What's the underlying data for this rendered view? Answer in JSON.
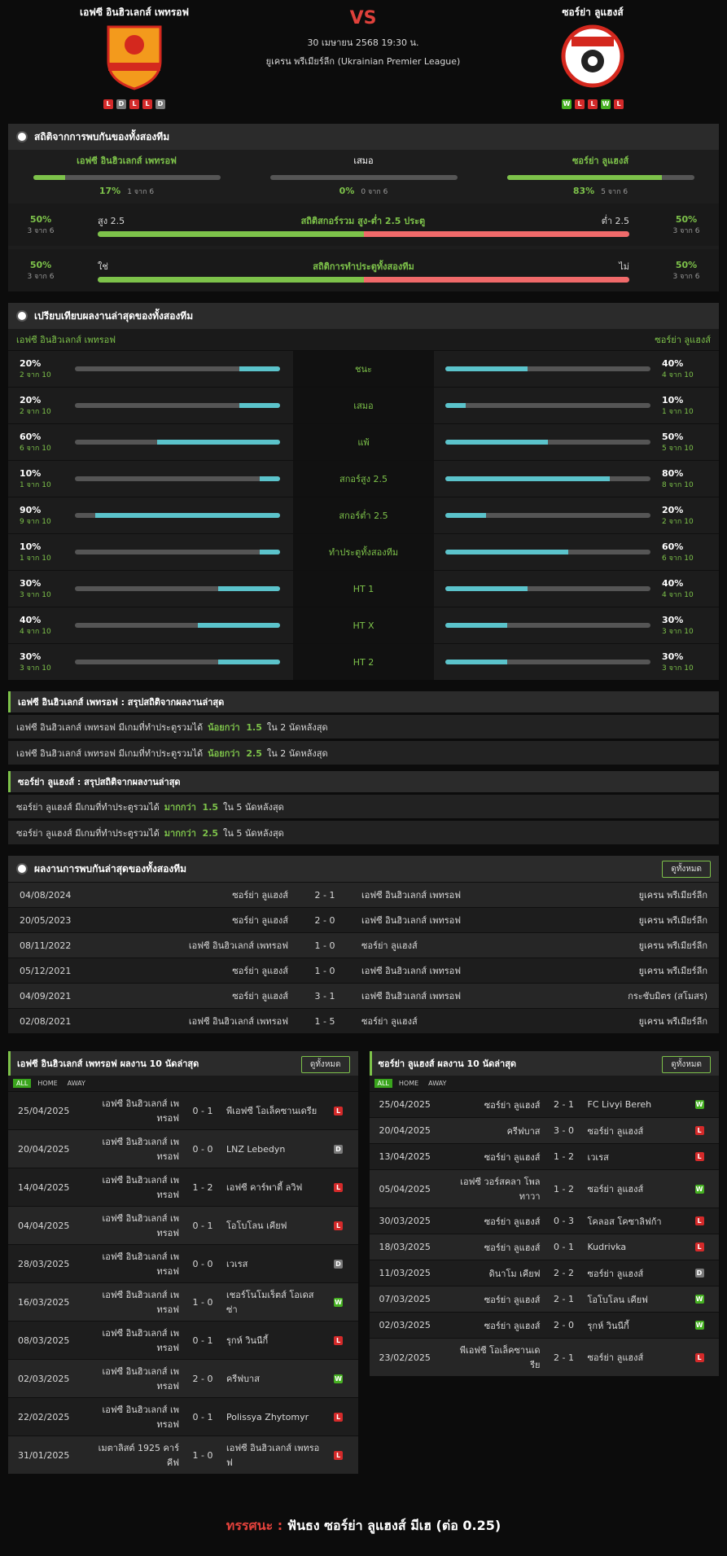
{
  "header": {
    "home_team": "เอฟซี อินฮิวเลกส์ เพทรอฟ",
    "away_team": "ซอร์ย่า ลูแฮงส์",
    "vs": "VS",
    "datetime": "30 เมษายน 2568 19:30 น.",
    "league": "ยูเครน พรีเมียร์ลีก (Ukrainian Premier League)",
    "home_form": [
      "L",
      "D",
      "L",
      "L",
      "D"
    ],
    "away_form": [
      "W",
      "L",
      "L",
      "W",
      "L"
    ]
  },
  "h2h_stats": {
    "title": "สถิติจากการพบกันของทั้งสองทีม",
    "columns": [
      {
        "label": "เอฟซี อินฮิวเลกส์ เพทรอฟ",
        "pct": {
          "value": 17,
          "label": "17%"
        },
        "count": "1 จาก 6"
      },
      {
        "label": "เสมอ",
        "pct": {
          "value": 0,
          "label": "0%"
        },
        "count": "0 จาก 6"
      },
      {
        "label": "ซอร์ย่า ลูแฮงส์",
        "pct": {
          "value": 83,
          "label": "83%"
        },
        "count": "5 จาก 6"
      }
    ],
    "rows": [
      {
        "left_pct": {
          "value": 50,
          "label": "50%"
        },
        "left_count": "3 จาก 6",
        "left_label": "สูง 2.5",
        "title": "สถิติสกอร์รวม สูง-ต่ำ 2.5 ประตู",
        "right_label": "ต่ำ 2.5",
        "right_pct": {
          "value": 50,
          "label": "50%"
        },
        "right_count": "3 จาก 6"
      },
      {
        "left_pct": {
          "value": 50,
          "label": "50%"
        },
        "left_count": "3 จาก 6",
        "left_label": "ใช่",
        "title": "สถิติการทำประตูทั้งสองทีม",
        "right_label": "ไม่",
        "right_pct": {
          "value": 50,
          "label": "50%"
        },
        "right_count": "3 จาก 6"
      }
    ]
  },
  "form_compare": {
    "title": "เปรียบเทียบผลงานล่าสุดของทั้งสองทีม",
    "home_team": "เอฟซี อินฮิวเลกส์ เพทรอฟ",
    "away_team": "ซอร์ย่า ลูแฮงส์",
    "rows": [
      {
        "label": "ชนะ",
        "home_pct": {
          "value": 20,
          "label": "20%"
        },
        "home_count": "2 จาก 10",
        "away_pct": {
          "value": 40,
          "label": "40%"
        },
        "away_count": "4 จาก 10"
      },
      {
        "label": "เสมอ",
        "home_pct": {
          "value": 20,
          "label": "20%"
        },
        "home_count": "2 จาก 10",
        "away_pct": {
          "value": 10,
          "label": "10%"
        },
        "away_count": "1 จาก 10"
      },
      {
        "label": "แพ้",
        "home_pct": {
          "value": 60,
          "label": "60%"
        },
        "home_count": "6 จาก 10",
        "away_pct": {
          "value": 50,
          "label": "50%"
        },
        "away_count": "5 จาก 10"
      },
      {
        "label": "สกอร์สูง 2.5",
        "home_pct": {
          "value": 10,
          "label": "10%"
        },
        "home_count": "1 จาก 10",
        "away_pct": {
          "value": 80,
          "label": "80%"
        },
        "away_count": "8 จาก 10"
      },
      {
        "label": "สกอร์ต่ำ 2.5",
        "home_pct": {
          "value": 90,
          "label": "90%"
        },
        "home_count": "9 จาก 10",
        "away_pct": {
          "value": 20,
          "label": "20%"
        },
        "away_count": "2 จาก 10"
      },
      {
        "label": "ทำประตูทั้งสองทีม",
        "home_pct": {
          "value": 10,
          "label": "10%"
        },
        "home_count": "1 จาก 10",
        "away_pct": {
          "value": 60,
          "label": "60%"
        },
        "away_count": "6 จาก 10"
      },
      {
        "label": "HT 1",
        "home_pct": {
          "value": 30,
          "label": "30%"
        },
        "home_count": "3 จาก 10",
        "away_pct": {
          "value": 40,
          "label": "40%"
        },
        "away_count": "4 จาก 10"
      },
      {
        "label": "HT X",
        "home_pct": {
          "value": 40,
          "label": "40%"
        },
        "home_count": "4 จาก 10",
        "away_pct": {
          "value": 30,
          "label": "30%"
        },
        "away_count": "3 จาก 10"
      },
      {
        "label": "HT 2",
        "home_pct": {
          "value": 30,
          "label": "30%"
        },
        "home_count": "3 จาก 10",
        "away_pct": {
          "value": 30,
          "label": "30%"
        },
        "away_count": "3 จาก 10"
      }
    ]
  },
  "summaries": [
    {
      "title": "เอฟซี อินฮิวเลกส์ เพทรอฟ : สรุปสถิติจากผลงานล่าสุด",
      "lines": [
        {
          "text": "เอฟซี อินฮิวเลกส์ เพทรอฟ มีเกมที่ทำประตูรวมได้",
          "highlight": "น้อยกว่า  1.5",
          "suffix": "ใน 2 นัดหลังสุด"
        },
        {
          "text": "เอฟซี อินฮิวเลกส์ เพทรอฟ มีเกมที่ทำประตูรวมได้",
          "highlight": "น้อยกว่า  2.5",
          "suffix": "ใน 2 นัดหลังสุด"
        }
      ]
    },
    {
      "title": "ซอร์ย่า ลูแฮงส์ : สรุปสถิติจากผลงานล่าสุด",
      "lines": [
        {
          "text": "ซอร์ย่า ลูแฮงส์ มีเกมที่ทำประตูรวมได้",
          "highlight": "มากกว่า  1.5",
          "suffix": "ใน 5 นัดหลังสุด"
        },
        {
          "text": "ซอร์ย่า ลูแฮงส์ มีเกมที่ทำประตูรวมได้",
          "highlight": "มากกว่า  2.5",
          "suffix": "ใน 5 นัดหลังสุด"
        }
      ]
    }
  ],
  "h2h_results": {
    "title": "ผลงานการพบกันล่าสุดของทั้งสองทีม",
    "button": "ดูทั้งหมด",
    "rows": [
      {
        "date": "04/08/2024",
        "home": "ซอร์ย่า ลูแฮงส์",
        "score": "2 - 1",
        "away": "เอฟซี อินฮิวเลกส์ เพทรอฟ",
        "league": "ยูเครน พรีเมียร์ลีก"
      },
      {
        "date": "20/05/2023",
        "home": "ซอร์ย่า ลูแฮงส์",
        "score": "2 - 0",
        "away": "เอฟซี อินฮิวเลกส์ เพทรอฟ",
        "league": "ยูเครน พรีเมียร์ลีก"
      },
      {
        "date": "08/11/2022",
        "home": "เอฟซี อินฮิวเลกส์ เพทรอฟ",
        "score": "1 - 0",
        "away": "ซอร์ย่า ลูแฮงส์",
        "league": "ยูเครน พรีเมียร์ลีก"
      },
      {
        "date": "05/12/2021",
        "home": "ซอร์ย่า ลูแฮงส์",
        "score": "1 - 0",
        "away": "เอฟซี อินฮิวเลกส์ เพทรอฟ",
        "league": "ยูเครน พรีเมียร์ลีก"
      },
      {
        "date": "04/09/2021",
        "home": "ซอร์ย่า ลูแฮงส์",
        "score": "3 - 1",
        "away": "เอฟซี อินฮิวเลกส์ เพทรอฟ",
        "league": "กระชับมิตร (สโมสร)"
      },
      {
        "date": "02/08/2021",
        "home": "เอฟซี อินฮิวเลกส์ เพทรอฟ",
        "score": "1 - 5",
        "away": "ซอร์ย่า ลูแฮงส์",
        "league": "ยูเครน พรีเมียร์ลีก"
      }
    ]
  },
  "last10": [
    {
      "title": "เอฟซี อินฮิวเลกส์ เพทรอฟ ผลงาน 10 นัดล่าสุด",
      "button": "ดูทั้งหมด",
      "tabs": [
        "ALL",
        "HOME",
        "AWAY"
      ],
      "rows": [
        {
          "date": "25/04/2025",
          "home": "เอฟซี อินฮิวเลกส์ เพทรอฟ",
          "score": "0 - 1",
          "away": "พีเอฟซี โอเล็คซานเดรีย",
          "result": "L"
        },
        {
          "date": "20/04/2025",
          "home": "เอฟซี อินฮิวเลกส์ เพทรอฟ",
          "score": "0 - 0",
          "away": "LNZ Lebedyn",
          "result": "D"
        },
        {
          "date": "14/04/2025",
          "home": "เอฟซี อินฮิวเลกส์ เพทรอฟ",
          "score": "1 - 2",
          "away": "เอฟซี คาร์พาตี้ ลวิฟ",
          "result": "L"
        },
        {
          "date": "04/04/2025",
          "home": "เอฟซี อินฮิวเลกส์ เพทรอฟ",
          "score": "0 - 1",
          "away": "โอโบโลน เคียฟ",
          "result": "L"
        },
        {
          "date": "28/03/2025",
          "home": "เอฟซี อินฮิวเลกส์ เพทรอฟ",
          "score": "0 - 0",
          "away": "เวเรส",
          "result": "D"
        },
        {
          "date": "16/03/2025",
          "home": "เอฟซี อินฮิวเลกส์ เพทรอฟ",
          "score": "1 - 0",
          "away": "เชอร์โนโมเร็ตส์ โอเดสซ่า",
          "result": "W"
        },
        {
          "date": "08/03/2025",
          "home": "เอฟซี อินฮิวเลกส์ เพทรอฟ",
          "score": "0 - 1",
          "away": "รุกห์ วินนีกี้",
          "result": "L"
        },
        {
          "date": "02/03/2025",
          "home": "เอฟซี อินฮิวเลกส์ เพทรอฟ",
          "score": "2 - 0",
          "away": "ครีฟบาส",
          "result": "W"
        },
        {
          "date": "22/02/2025",
          "home": "เอฟซี อินฮิวเลกส์ เพทรอฟ",
          "score": "0 - 1",
          "away": "Polissya Zhytomyr",
          "result": "L"
        },
        {
          "date": "31/01/2025",
          "home": "เมตาลิสต์ 1925 คาร์คีฟ",
          "score": "1 - 0",
          "away": "เอฟซี อินฮิวเลกส์ เพทรอฟ",
          "result": "L"
        }
      ]
    },
    {
      "title": "ซอร์ย่า ลูแฮงส์ ผลงาน 10 นัดล่าสุด",
      "button": "ดูทั้งหมด",
      "tabs": [
        "ALL",
        "HOME",
        "AWAY"
      ],
      "rows": [
        {
          "date": "25/04/2025",
          "home": "ซอร์ย่า ลูแฮงส์",
          "score": "2 - 1",
          "away": "FC Livyi Bereh",
          "result": "W"
        },
        {
          "date": "20/04/2025",
          "home": "ครีฟบาส",
          "score": "3 - 0",
          "away": "ซอร์ย่า ลูแฮงส์",
          "result": "L"
        },
        {
          "date": "13/04/2025",
          "home": "ซอร์ย่า ลูแฮงส์",
          "score": "1 - 2",
          "away": "เวเรส",
          "result": "L"
        },
        {
          "date": "05/04/2025",
          "home": "เอฟซี วอร์สคลา โพลทาวา",
          "score": "1 - 2",
          "away": "ซอร์ย่า ลูแฮงส์",
          "result": "W"
        },
        {
          "date": "30/03/2025",
          "home": "ซอร์ย่า ลูแฮงส์",
          "score": "0 - 3",
          "away": "โคลอส โคซาลิฟก้า",
          "result": "L"
        },
        {
          "date": "18/03/2025",
          "home": "ซอร์ย่า ลูแฮงส์",
          "score": "0 - 1",
          "away": "Kudrivka",
          "result": "L"
        },
        {
          "date": "11/03/2025",
          "home": "ดินาโม เคียฟ",
          "score": "2 - 2",
          "away": "ซอร์ย่า ลูแฮงส์",
          "result": "D"
        },
        {
          "date": "07/03/2025",
          "home": "ซอร์ย่า ลูแฮงส์",
          "score": "2 - 1",
          "away": "โอโบโลน เคียฟ",
          "result": "W"
        },
        {
          "date": "02/03/2025",
          "home": "ซอร์ย่า ลูแฮงส์",
          "score": "2 - 0",
          "away": "รุกห์ วินนีกี้",
          "result": "W"
        },
        {
          "date": "23/02/2025",
          "home": "พีเอฟซี โอเล็คซานเดรีย",
          "score": "2 - 1",
          "away": "ซอร์ย่า ลูแฮงส์",
          "result": "L"
        }
      ]
    }
  ],
  "verdict": {
    "label": "ทรรศนะ :",
    "text": "ฟันธง ซอร์ย่า ลูแฮงส์ มีเฮ (ต่อ 0.25)"
  }
}
